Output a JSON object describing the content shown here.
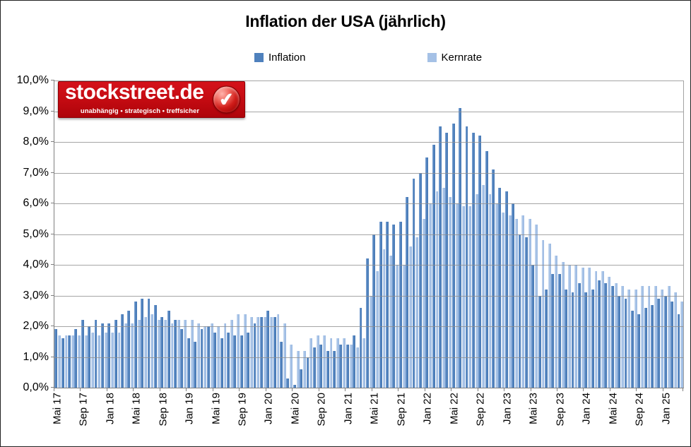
{
  "title": "Inflation der USA (jährlich)",
  "logo": {
    "brand": "stockstreet.de",
    "tagline": "unabhängig • strategisch • treffsicher",
    "background_color": "#c20a11",
    "checkmark_icon": "✔"
  },
  "colors": {
    "inflation_bar": "#4f81bd",
    "kernrate_bar": "#a5c1e6",
    "gridline": "#8f8f8f",
    "axis": "#7f7f7f",
    "background": "#ffffff"
  },
  "axes": {
    "y_tick_labels": [
      "10,0%",
      "9,0%",
      "8,0%",
      "7,0%",
      "6,0%",
      "5,0%",
      "4,0%",
      "3,0%",
      "2,0%",
      "1,0%",
      "0,0%"
    ],
    "x_tick_labels": [
      "Mai 17",
      "Sep 17",
      "Jan 18",
      "Mai 18",
      "Sep 18",
      "Jan 19",
      "Mai 19",
      "Sep 19",
      "Jan 20",
      "Mai 20",
      "Sep 20",
      "Jan 21",
      "Mai 21",
      "Sep 21",
      "Jan 22",
      "Mai 22",
      "Sep 22",
      "Jan 23",
      "Mai 23",
      "Sep 23",
      "Jan 24",
      "Mai 24",
      "Sep 24",
      "Jan 25"
    ],
    "x_label_interval_months": 4
  },
  "chart_data": {
    "type": "bar",
    "title": "Inflation der USA (jährlich)",
    "ylabel": "",
    "xlabel": "",
    "ylim": [
      0,
      10
    ],
    "y_unit": "%",
    "grid": "horizontal",
    "legend_position": "top",
    "x": [
      "Mai 17",
      "Jun 17",
      "Jul 17",
      "Aug 17",
      "Sep 17",
      "Okt 17",
      "Nov 17",
      "Dez 17",
      "Jan 18",
      "Feb 18",
      "Mär 18",
      "Apr 18",
      "Mai 18",
      "Jun 18",
      "Jul 18",
      "Aug 18",
      "Sep 18",
      "Okt 18",
      "Nov 18",
      "Dez 18",
      "Jan 19",
      "Feb 19",
      "Mär 19",
      "Apr 19",
      "Mai 19",
      "Jun 19",
      "Jul 19",
      "Aug 19",
      "Sep 19",
      "Okt 19",
      "Nov 19",
      "Dez 19",
      "Jan 20",
      "Feb 20",
      "Mär 20",
      "Apr 20",
      "Mai 20",
      "Jun 20",
      "Jul 20",
      "Aug 20",
      "Sep 20",
      "Okt 20",
      "Nov 20",
      "Dez 20",
      "Jan 21",
      "Feb 21",
      "Mär 21",
      "Apr 21",
      "Mai 21",
      "Jun 21",
      "Jul 21",
      "Aug 21",
      "Sep 21",
      "Okt 21",
      "Nov 21",
      "Dez 21",
      "Jan 22",
      "Feb 22",
      "Mär 22",
      "Apr 22",
      "Mai 22",
      "Jun 22",
      "Jul 22",
      "Aug 22",
      "Sep 22",
      "Okt 22",
      "Nov 22",
      "Dez 22",
      "Jan 23",
      "Feb 23",
      "Mär 23",
      "Apr 23",
      "Mai 23",
      "Jun 23",
      "Jul 23",
      "Aug 23",
      "Sep 23",
      "Okt 23",
      "Nov 23",
      "Dez 23",
      "Jan 24",
      "Feb 24",
      "Mär 24",
      "Apr 24",
      "Mai 24",
      "Jun 24",
      "Jul 24",
      "Aug 24",
      "Sep 24",
      "Okt 24",
      "Nov 24",
      "Dez 24",
      "Jan 25",
      "Feb 25",
      "Mär 25"
    ],
    "series": [
      {
        "name": "Inflation",
        "color": "#4f81bd",
        "values": [
          1.9,
          1.6,
          1.7,
          1.9,
          2.2,
          2.0,
          2.2,
          2.1,
          2.1,
          2.2,
          2.4,
          2.5,
          2.8,
          2.9,
          2.9,
          2.7,
          2.3,
          2.5,
          2.2,
          1.9,
          1.6,
          1.5,
          1.9,
          2.0,
          1.8,
          1.6,
          1.8,
          1.7,
          1.7,
          1.8,
          2.1,
          2.3,
          2.5,
          2.3,
          1.5,
          0.3,
          0.1,
          0.6,
          1.0,
          1.3,
          1.4,
          1.2,
          1.2,
          1.4,
          1.4,
          1.7,
          2.6,
          4.2,
          5.0,
          5.4,
          5.4,
          5.3,
          5.4,
          6.2,
          6.8,
          7.0,
          7.5,
          7.9,
          8.5,
          8.3,
          8.6,
          9.1,
          8.5,
          8.3,
          8.2,
          7.7,
          7.1,
          6.5,
          6.4,
          6.0,
          5.0,
          4.9,
          4.0,
          3.0,
          3.2,
          3.7,
          3.7,
          3.2,
          3.1,
          3.4,
          3.1,
          3.2,
          3.5,
          3.4,
          3.3,
          3.0,
          2.9,
          2.5,
          2.4,
          2.6,
          2.7,
          2.9,
          3.0,
          2.8,
          2.4
        ]
      },
      {
        "name": "Kernrate",
        "color": "#a5c1e6",
        "values": [
          1.7,
          1.7,
          1.7,
          1.7,
          1.7,
          1.8,
          1.7,
          1.8,
          1.8,
          1.8,
          2.1,
          2.1,
          2.2,
          2.3,
          2.4,
          2.2,
          2.2,
          2.1,
          2.2,
          2.2,
          2.2,
          2.1,
          2.0,
          2.1,
          2.0,
          2.1,
          2.2,
          2.4,
          2.4,
          2.3,
          2.3,
          2.3,
          2.3,
          2.4,
          2.1,
          1.4,
          1.2,
          1.2,
          1.6,
          1.7,
          1.7,
          1.6,
          1.6,
          1.6,
          1.4,
          1.3,
          1.6,
          3.0,
          3.8,
          4.5,
          4.3,
          4.0,
          4.0,
          4.6,
          4.9,
          5.5,
          6.0,
          6.4,
          6.5,
          6.2,
          6.0,
          5.9,
          5.9,
          6.3,
          6.6,
          6.3,
          6.0,
          5.7,
          5.6,
          5.5,
          5.6,
          5.5,
          5.3,
          4.8,
          4.7,
          4.3,
          4.1,
          4.0,
          4.0,
          3.9,
          3.9,
          3.8,
          3.8,
          3.6,
          3.4,
          3.3,
          3.2,
          3.2,
          3.3,
          3.3,
          3.3,
          3.2,
          3.3,
          3.1,
          2.8
        ]
      }
    ]
  }
}
